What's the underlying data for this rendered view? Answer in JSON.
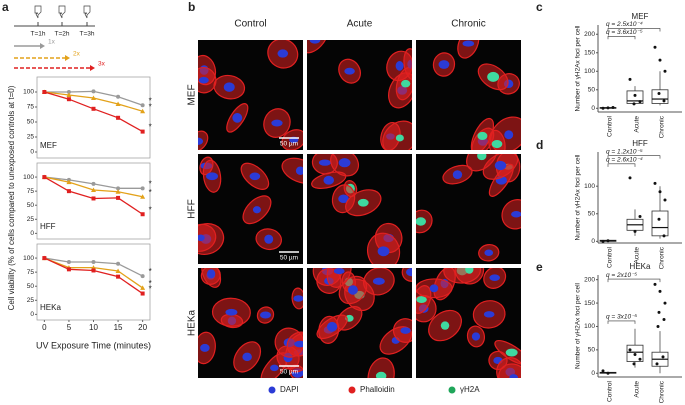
{
  "panel_labels": [
    "a",
    "b",
    "c",
    "d",
    "e"
  ],
  "schedule": {
    "times": [
      "T=1h",
      "T=2h",
      "T=3h"
    ]
  },
  "microscopy": {
    "columns": [
      "Control",
      "Acute",
      "Chronic"
    ],
    "rows": [
      "MEF",
      "HFF",
      "HEKa"
    ],
    "scale_bar": "50 µm",
    "legend": [
      {
        "name": "DAPI",
        "color": "#2b3bd6"
      },
      {
        "name": "Phalloidin",
        "color": "#e02020"
      },
      {
        "name": "γH2A",
        "color": "#1fa65a"
      }
    ]
  },
  "chart_data": [
    {
      "type": "line",
      "title": "MEF",
      "x": [
        0,
        5,
        10,
        15,
        20
      ],
      "xlim": [
        -1.5,
        21.5
      ],
      "ylim": [
        -10,
        125
      ],
      "yticks": [
        0,
        25,
        50,
        75,
        100
      ],
      "y_label": "Cell viability (% of cells compared to unexposed controls at t=0)",
      "series": [
        {
          "name": "1x",
          "color": "#9a9a9a",
          "marker": "circle",
          "values": [
            100,
            100,
            101,
            92,
            78
          ],
          "sig": "*"
        },
        {
          "name": "2x",
          "color": "#e3a21a",
          "marker": "triangle",
          "values": [
            100,
            95,
            90,
            80,
            68
          ],
          "sig": "*"
        },
        {
          "name": "3x",
          "color": "#e02020",
          "marker": "square",
          "values": [
            100,
            88,
            72,
            57,
            34
          ],
          "sig": "*"
        }
      ]
    },
    {
      "type": "line",
      "title": "HFF",
      "x": [
        0,
        5,
        10,
        15,
        20
      ],
      "xlim": [
        -1.5,
        21.5
      ],
      "ylim": [
        -10,
        125
      ],
      "yticks": [
        0,
        25,
        50,
        75,
        100
      ],
      "series": [
        {
          "color": "#9a9a9a",
          "marker": "circle",
          "values": [
            100,
            95,
            88,
            80,
            80
          ],
          "sig": "*"
        },
        {
          "color": "#e3a21a",
          "marker": "triangle",
          "values": [
            100,
            91,
            77,
            74,
            65
          ],
          "sig": "*"
        },
        {
          "color": "#e02020",
          "marker": "square",
          "values": [
            100,
            75,
            62,
            63,
            34
          ],
          "sig": "*"
        }
      ]
    },
    {
      "type": "line",
      "title": "HEKa",
      "x": [
        0,
        5,
        10,
        15,
        20
      ],
      "xlim": [
        -1.5,
        21.5
      ],
      "ylim": [
        -10,
        125
      ],
      "yticks": [
        0,
        25,
        50,
        75,
        100
      ],
      "xticks": [
        0,
        5,
        10,
        15,
        20
      ],
      "x_label": "UV Exposure Time (minutes)",
      "series": [
        {
          "color": "#9a9a9a",
          "marker": "circle",
          "values": [
            100,
            93,
            93,
            90,
            68
          ],
          "sig": "*"
        },
        {
          "color": "#e3a21a",
          "marker": "triangle",
          "values": [
            100,
            83,
            83,
            77,
            47
          ],
          "sig": "*"
        },
        {
          "color": "#e02020",
          "marker": "square",
          "values": [
            100,
            80,
            78,
            67,
            37
          ],
          "sig": "*"
        }
      ]
    },
    {
      "type": "box",
      "title": "MEF",
      "categories": [
        "Control",
        "Acute",
        "Chronic"
      ],
      "ylim": [
        -10,
        225
      ],
      "yticks": [
        0,
        50,
        100,
        150,
        200
      ],
      "y_label": "Number of γH2Ax foci per cell",
      "boxes": [
        {
          "min": 0,
          "q1": 0,
          "median": 1,
          "q3": 2,
          "max": 3,
          "points": [
            0,
            1,
            2
          ]
        },
        {
          "min": 10,
          "q1": 13,
          "median": 20,
          "q3": 47,
          "max": 60,
          "points": [
            78,
            35,
            18,
            12
          ]
        },
        {
          "min": 8,
          "q1": 13,
          "median": 25,
          "q3": 50,
          "max": 100,
          "points": [
            165,
            130,
            100,
            40,
            20
          ]
        }
      ],
      "annotations": [
        "q = 2.5x10⁻⁴",
        "q = 3.6x10⁻⁵"
      ]
    },
    {
      "type": "box",
      "title": "HFF",
      "categories": [
        "Control",
        "Acute",
        "Chronic"
      ],
      "ylim": [
        -3,
        162
      ],
      "yticks": [
        0,
        50,
        100
      ],
      "y_label": "Number of γH2Ax foci per cell",
      "boxes": [
        {
          "min": 0,
          "q1": 0,
          "median": 1,
          "q3": 2,
          "max": 3,
          "points": [
            0,
            1
          ]
        },
        {
          "min": 10,
          "q1": 20,
          "median": 30,
          "q3": 40,
          "max": 58,
          "points": [
            115,
            18,
            45
          ]
        },
        {
          "min": 5,
          "q1": 10,
          "median": 25,
          "q3": 55,
          "max": 100,
          "points": [
            105,
            90,
            75,
            40,
            10
          ]
        }
      ],
      "annotations": [
        "q = 1.2x10⁻⁵",
        "q = 2.6x10⁻⁴"
      ]
    },
    {
      "type": "box",
      "title": "HEKa",
      "categories": [
        "Control",
        "Acute",
        "Chronic"
      ],
      "ylim": [
        -8,
        210
      ],
      "yticks": [
        0,
        50,
        100,
        150,
        200
      ],
      "y_label": "Number of γH2Ax foci per cell",
      "boxes": [
        {
          "min": 0,
          "q1": 0,
          "median": 1,
          "q3": 2,
          "max": 3,
          "points": [
            5,
            0
          ]
        },
        {
          "min": 12,
          "q1": 25,
          "median": 45,
          "q3": 60,
          "max": 95,
          "points": [
            50,
            40,
            30,
            20
          ]
        },
        {
          "min": 0,
          "q1": 15,
          "median": 30,
          "q3": 45,
          "max": 90,
          "points": [
            190,
            175,
            150,
            130,
            115,
            100,
            35,
            20
          ]
        }
      ],
      "annotations": [
        "q = 2x10⁻⁵",
        "q = 3x10⁻⁵"
      ]
    }
  ]
}
